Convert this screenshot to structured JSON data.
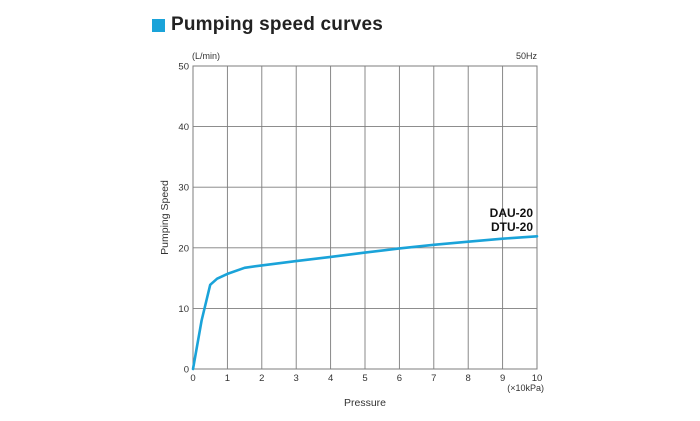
{
  "header": {
    "title": "Pumping speed curves",
    "accent_color": "#1aa3d9"
  },
  "chart_data": {
    "type": "line",
    "title": "Pumping speed curves",
    "xlabel": "Pressure",
    "ylabel": "Pumping Speed",
    "x_unit": "(×10kPa)",
    "y_unit": "(L/min)",
    "frequency_note": "50Hz",
    "xlim": [
      0,
      10
    ],
    "ylim": [
      0,
      50
    ],
    "x_ticks": [
      0,
      1,
      2,
      3,
      4,
      5,
      6,
      7,
      8,
      9,
      10
    ],
    "y_ticks": [
      0,
      10,
      20,
      30,
      40,
      50
    ],
    "grid": true,
    "series": [
      {
        "labels": [
          "DAU-20",
          "DTU-20"
        ],
        "color": "#1aa3d9",
        "x": [
          0,
          0.25,
          0.5,
          0.7,
          1.0,
          1.5,
          2,
          3,
          4,
          5,
          6,
          7,
          8,
          9,
          10
        ],
        "y": [
          0,
          8,
          13.9,
          14.9,
          15.7,
          16.7,
          17.1,
          17.8,
          18.5,
          19.2,
          19.9,
          20.5,
          21.0,
          21.5,
          21.9
        ]
      }
    ]
  }
}
